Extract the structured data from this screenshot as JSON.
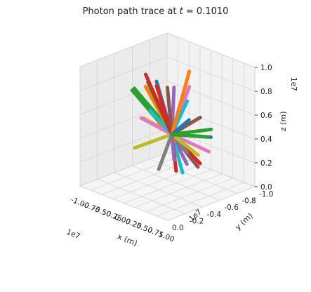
{
  "chart_data": {
    "type": "line",
    "projection": "3d",
    "title": "Photon path trace at t = 0.1010",
    "title_prefix": "Photon path trace at ",
    "title_var": "t",
    "title_suffix": " = 0.1010",
    "xlabel": "x (m)",
    "ylabel": "y (m)",
    "zlabel": "z (m)",
    "x_multiplier": "1e7",
    "y_multiplier": "1e7",
    "z_multiplier": "1e7",
    "xlim": [
      -1.0,
      1.0
    ],
    "ylim": [
      -1.0,
      0.0
    ],
    "zlim": [
      0.0,
      1.0
    ],
    "x_ticks": [
      "-1.00",
      "-0.75",
      "-0.50",
      "-0.25",
      "0.00",
      "0.25",
      "0.50",
      "0.75",
      "1.00"
    ],
    "y_ticks": [
      "0.0",
      "-0.2",
      "-0.4",
      "-0.6",
      "-0.8",
      "-1.0"
    ],
    "z_ticks": [
      "0.0",
      "0.2",
      "0.4",
      "0.6",
      "0.8",
      "1.0"
    ],
    "grid": true,
    "legend": "none",
    "incoming_beam": {
      "color": "#2ca02c",
      "from": [
        -1.0,
        -0.6,
        0.65
      ],
      "to": [
        0.1,
        -0.5,
        0.45
      ]
    },
    "impact_point": [
      0.1,
      -0.5,
      0.45
    ],
    "rays": [
      {
        "color": "#1f77b4",
        "end": [
          -0.05,
          -0.4,
          0.9
        ]
      },
      {
        "color": "#ff7f0e",
        "end": [
          -0.2,
          -0.35,
          0.85
        ]
      },
      {
        "color": "#2ca02c",
        "end": [
          0.05,
          -0.25,
          0.95
        ]
      },
      {
        "color": "#d62728",
        "end": [
          0.15,
          -0.3,
          0.92
        ]
      },
      {
        "color": "#9467bd",
        "end": [
          0.25,
          -0.45,
          0.88
        ]
      },
      {
        "color": "#8c564b",
        "end": [
          -0.1,
          -0.55,
          0.8
        ]
      },
      {
        "color": "#e377c2",
        "end": [
          0.3,
          -0.6,
          0.85
        ]
      },
      {
        "color": "#7f7f7f",
        "end": [
          -0.25,
          -0.5,
          0.7
        ]
      },
      {
        "color": "#bcbd22",
        "end": [
          -0.35,
          -0.4,
          0.55
        ]
      },
      {
        "color": "#17becf",
        "end": [
          0.35,
          -0.55,
          0.75
        ]
      },
      {
        "color": "#1f77b4",
        "end": [
          0.4,
          -0.5,
          0.5
        ]
      },
      {
        "color": "#ff7f0e",
        "end": [
          -0.4,
          -0.6,
          0.45
        ]
      },
      {
        "color": "#2ca02c",
        "end": [
          -0.3,
          -0.7,
          0.35
        ]
      },
      {
        "color": "#d62728",
        "end": [
          0.05,
          -0.85,
          0.1
        ]
      },
      {
        "color": "#9467bd",
        "end": [
          -0.15,
          -0.8,
          0.08
        ]
      },
      {
        "color": "#8c564b",
        "end": [
          0.2,
          -0.75,
          0.12
        ]
      },
      {
        "color": "#e377c2",
        "end": [
          0.15,
          -0.9,
          0.2
        ]
      },
      {
        "color": "#7f7f7f",
        "end": [
          -0.25,
          -0.85,
          0.15
        ]
      },
      {
        "color": "#bcbd22",
        "end": [
          0.3,
          -0.7,
          0.25
        ]
      },
      {
        "color": "#17becf",
        "end": [
          -0.05,
          -0.7,
          0.05
        ]
      },
      {
        "color": "#1f77b4",
        "end": [
          0.1,
          -0.95,
          0.3
        ]
      },
      {
        "color": "#ff7f0e",
        "end": [
          -0.35,
          -0.75,
          0.25
        ]
      },
      {
        "color": "#2ca02c",
        "end": [
          0.25,
          -0.85,
          0.35
        ]
      },
      {
        "color": "#d62728",
        "end": [
          0.0,
          -0.6,
          0.1
        ]
      },
      {
        "color": "#9467bd",
        "end": [
          0.35,
          -0.4,
          0.3
        ]
      },
      {
        "color": "#e377c2",
        "end": [
          -0.2,
          -0.3,
          0.6
        ]
      },
      {
        "color": "#17becf",
        "end": [
          0.2,
          -0.2,
          0.75
        ]
      },
      {
        "color": "#bcbd22",
        "end": [
          -0.45,
          -0.35,
          0.3
        ]
      },
      {
        "color": "#8c564b",
        "end": [
          0.45,
          -0.65,
          0.6
        ]
      },
      {
        "color": "#7f7f7f",
        "end": [
          0.1,
          -0.35,
          0.2
        ]
      },
      {
        "color": "#d62728",
        "end": [
          -0.1,
          -0.3,
          0.98
        ]
      },
      {
        "color": "#ff7f0e",
        "end": [
          0.2,
          -0.65,
          0.95
        ]
      },
      {
        "color": "#1f77b4",
        "end": [
          -0.3,
          -0.9,
          0.4
        ]
      },
      {
        "color": "#2ca02c",
        "end": [
          0.4,
          -0.8,
          0.45
        ]
      }
    ]
  }
}
